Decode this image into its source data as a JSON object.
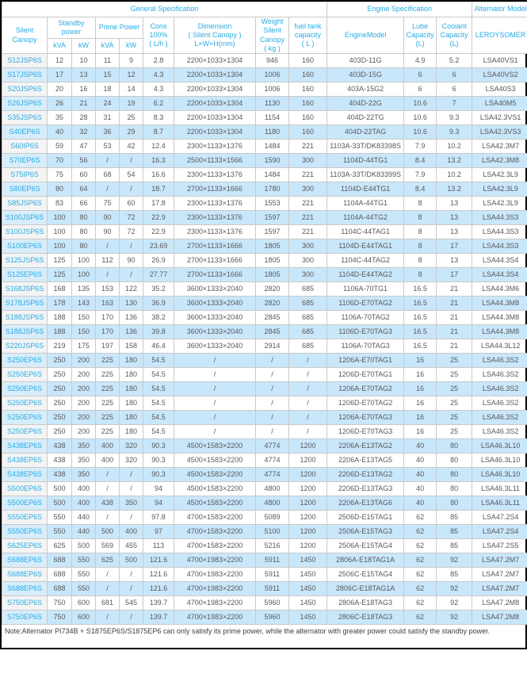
{
  "colors": {
    "accent_blue": "#29abe2",
    "alt_row_blue": "#c9e7fa",
    "model_col_gray": "#f4f4f4",
    "data_text": "#58595b"
  },
  "table": {
    "sections": {
      "general": "General Specification",
      "engine": "Engine Specification",
      "alternator": "Alternator Model"
    },
    "headers": {
      "silent_canopy": "Silent Canopy",
      "standby_power": "Standby\npower",
      "prime_power": "Prime Power",
      "standby_kva": "kVA",
      "standby_kw": "kW",
      "prime_kva": "kVA",
      "prime_kw": "kW",
      "cons": "Cons\n100%\n( L/h )",
      "dimension": "Dimension\n( Silent Canopy )\nL×W×H(mm)",
      "weight": "Weight\nSilent\nCanopy\n( kg )",
      "fuel": "fuel tank\ncapacity\n( L )",
      "engine_model": "EngineModel",
      "lube": "Lube\nCapacity\n(L)",
      "coolant": "Coolant\nCapacity\n(L)",
      "leroysomer": "LEROYSOMER"
    },
    "rows": [
      [
        "S12JSP6S",
        "12",
        "10",
        "11",
        "9",
        "2.8",
        "2200×1033×1304",
        "946",
        "160",
        "403D-11G",
        "4.9",
        "5.2",
        "LSA40VS1"
      ],
      [
        "S17JSP6S",
        "17",
        "13",
        "15",
        "12",
        "4.3",
        "2200×1033×1304",
        "1006",
        "160",
        "403D-15G",
        "6",
        "6",
        "LSA40VS2"
      ],
      [
        "S20JSP6S",
        "20",
        "16",
        "18",
        "14",
        "4.3",
        "2200×1033×1304",
        "1006",
        "160",
        "403A-15G2",
        "6",
        "6",
        "LSA40S3"
      ],
      [
        "S26JSP6S",
        "26",
        "21",
        "24",
        "19",
        "6.2",
        "2200×1033×1304",
        "1130",
        "160",
        "404D-22G",
        "10.6",
        "7",
        "LSA40M5"
      ],
      [
        "S35JSP6S",
        "35",
        "28",
        "31",
        "25",
        "8.3",
        "2200×1033×1304",
        "1154",
        "160",
        "404D-22TG",
        "10.6",
        "9.3",
        "LSA42.3VS1"
      ],
      [
        "S40EP6S",
        "40",
        "32",
        "36",
        "29",
        "8.7",
        "2200×1033×1304",
        "1180",
        "160",
        "404D-22TAG",
        "10.6",
        "9.3",
        "LSA42.3VS3"
      ],
      [
        "S60IP6S",
        "59",
        "47",
        "53",
        "42",
        "12.4",
        "2300×1133×1376",
        "1484",
        "221",
        "1103A-33T/DK83398S",
        "7.9",
        "10.2",
        "LSA42.3M7"
      ],
      [
        "S70EP6S",
        "70",
        "56",
        "/",
        "/",
        "16.3",
        "2500×1133×1566",
        "1590",
        "300",
        "1104D-44TG1",
        "8.4",
        "13.2",
        "LSA42.3M8"
      ],
      [
        "S75IP6S",
        "75",
        "60",
        "68",
        "54",
        "16.6",
        "2300×1133×1376",
        "1484",
        "221",
        "1103A-33T/DK83399S",
        "7.9",
        "10.2",
        "LSA42.3L9"
      ],
      [
        "S80EP6S",
        "80",
        "64",
        "/",
        "/",
        "18.7",
        "2700×1133×1666",
        "1780",
        "300",
        "1104D-E44TG1",
        "8.4",
        "13.2",
        "LSA42.3L9"
      ],
      [
        "S85JSP6S",
        "83",
        "66",
        "75",
        "60",
        "17.8",
        "2300×1133×1376",
        "1553",
        "221",
        "1104A-44TG1",
        "8",
        "13",
        "LSA42.3L9"
      ],
      [
        "S100JSP6S",
        "100",
        "80",
        "90",
        "72",
        "22.9",
        "2300×1133×1376",
        "1597",
        "221",
        "1104A-44TG2",
        "8",
        "13",
        "LSA44.3S3"
      ],
      [
        "S100JSP6S",
        "100",
        "80",
        "90",
        "72",
        "22.9",
        "2300×1133×1376",
        "1597",
        "221",
        "1104C-44TAG1",
        "8",
        "13",
        "LSA44.3S3"
      ],
      [
        "S100EP6S",
        "100",
        "80",
        "/",
        "/",
        "23.69",
        "2700×1133×1666",
        "1805",
        "300",
        "1104D-E44TAG1",
        "8",
        "17",
        "LSA44.3S3"
      ],
      [
        "S125JSP6S",
        "125",
        "100",
        "112",
        "90",
        "26.9",
        "2700×1133×1666",
        "1805",
        "300",
        "1104C-44TAG2",
        "8",
        "13",
        "LSA44.3S4"
      ],
      [
        "S125EP6S",
        "125",
        "100",
        "/",
        "/",
        "27.77",
        "2700×1133×1666",
        "1805",
        "300",
        "1104D-E44TAG2",
        "8",
        "17",
        "LSA44.3S4"
      ],
      [
        "S168JSP6S",
        "168",
        "135",
        "153",
        "122",
        "35.2",
        "3600×1333×2040",
        "2820",
        "685",
        "1106A-70TG1",
        "16.5",
        "21",
        "LSA44.3M6"
      ],
      [
        "S178JSP6S",
        "178",
        "143",
        "163",
        "130",
        "36.9",
        "3600×1333×2040",
        "2820",
        "685",
        "1106D-E70TAG2",
        "16.5",
        "21",
        "LSA44.3M8"
      ],
      [
        "S188JSP6S",
        "188",
        "150",
        "170",
        "136",
        "38.2",
        "3600×1333×2040",
        "2845",
        "685",
        "1106A-70TAG2",
        "16.5",
        "21",
        "LSA44.3M8"
      ],
      [
        "S188JSP6S",
        "188",
        "150",
        "170",
        "136",
        "39.8",
        "3600×1333×2040",
        "2845",
        "685",
        "1106D-E70TAG3",
        "16.5",
        "21",
        "LSA44.3M8"
      ],
      [
        "S220JSP6S",
        "219",
        "175",
        "197",
        "158",
        "46.4",
        "3600×1333×2040",
        "2914",
        "685",
        "1106A-70TAG3",
        "16.5",
        "21",
        "LSA44.3L12"
      ],
      [
        "S250EP6S",
        "250",
        "200",
        "225",
        "180",
        "54.5",
        "/",
        "/",
        "/",
        "1206A-E70TAG1",
        "16",
        "25",
        "LSA46.3S2"
      ],
      [
        "S250EP6S",
        "250",
        "200",
        "225",
        "180",
        "54.5",
        "/",
        "/",
        "/",
        "1206D-E70TAG1",
        "16",
        "25",
        "LSA46.3S2"
      ],
      [
        "S250EP6S",
        "250",
        "200",
        "225",
        "180",
        "54.5",
        "/",
        "/",
        "/",
        "1206A-E70TAG2",
        "16",
        "25",
        "LSA46.3S2"
      ],
      [
        "S250EP6S",
        "250",
        "200",
        "225",
        "180",
        "54.5",
        "/",
        "/",
        "/",
        "1206D-E70TAG2",
        "16",
        "25",
        "LSA46.3S2"
      ],
      [
        "S250EP6S",
        "250",
        "200",
        "225",
        "180",
        "54.5",
        "/",
        "/",
        "/",
        "1206A-E70TAG3",
        "16",
        "25",
        "LSA46.3S2"
      ],
      [
        "S250EP6S",
        "250",
        "200",
        "225",
        "180",
        "54.5",
        "/",
        "/",
        "/",
        "1206D-E70TAG3",
        "16",
        "25",
        "LSA46.3S2"
      ],
      [
        "S438EP6S",
        "438",
        "350",
        "400",
        "320",
        "90.3",
        "4500×1583×2200",
        "4774",
        "1200",
        "2206A-E13TAG2",
        "40",
        "80",
        "LSA46.3L10"
      ],
      [
        "S438EP6S",
        "438",
        "350",
        "400",
        "320",
        "90.3",
        "4500×1583×2200",
        "4774",
        "1200",
        "2206A-E13TAG5",
        "40",
        "80",
        "LSA46.3L10"
      ],
      [
        "S438EP6S",
        "438",
        "350",
        "/",
        "/",
        "90.3",
        "4500×1583×2200",
        "4774",
        "1200",
        "2206D-E13TAG2",
        "40",
        "80",
        "LSA46.3L10"
      ],
      [
        "S500EP6S",
        "500",
        "400",
        "/",
        "/",
        "94",
        "4500×1583×2200",
        "4800",
        "1200",
        "2206D-E13TAG3",
        "40",
        "80",
        "LSA46.3L11"
      ],
      [
        "S500EP6S",
        "500",
        "400",
        "438",
        "350",
        "94",
        "4500×1583×2200",
        "4800",
        "1200",
        "2206A-E13TAG6",
        "40",
        "80",
        "LSA46.3L11"
      ],
      [
        "S550EP6S",
        "550",
        "440",
        "/",
        "/",
        "97.8",
        "4700×1583×2200",
        "5089",
        "1200",
        "2506D-E15TAG1",
        "62",
        "85",
        "LSA47.2S4"
      ],
      [
        "S550EP6S",
        "550",
        "440",
        "500",
        "400",
        "97",
        "4700×1583×2200",
        "5100",
        "1200",
        "2506A-E15TAG3",
        "62",
        "85",
        "LSA47.2S4"
      ],
      [
        "S625EP6S",
        "625",
        "500",
        "569",
        "455",
        "113",
        "4700×1583×2200",
        "5216",
        "1200",
        "2506A-E15TAG4",
        "62",
        "85",
        "LSA47.2S5"
      ],
      [
        "S688EP6S",
        "688",
        "550",
        "625",
        "500",
        "121.6",
        "4700×1983×2200",
        "5911",
        "1450",
        "2806A-E18TAG1A",
        "62",
        "92",
        "LSA47.2M7"
      ],
      [
        "S688EP6S",
        "688",
        "550",
        "/",
        "/",
        "121.6",
        "4700×1983×2200",
        "5911",
        "1450",
        "2506C-E15TAG4",
        "62",
        "85",
        "LSA47.2M7"
      ],
      [
        "S688EP6S",
        "688",
        "550",
        "/",
        "/",
        "121.6",
        "4700×1983×2200",
        "5911",
        "1450",
        "2806C-E18TAG1A",
        "62",
        "92",
        "LSA47.2M7"
      ],
      [
        "S750EP6S",
        "750",
        "600",
        "681",
        "545",
        "139.7",
        "4700×1983×2200",
        "5960",
        "1450",
        "2806A-E18TAG3",
        "62",
        "92",
        "LSA47.2M8"
      ],
      [
        "S750EP6S",
        "750",
        "600",
        "/",
        "/",
        "139.7",
        "4700×1983×2200",
        "5960",
        "1450",
        "2806C-E18TAG3",
        "62",
        "92",
        "LSA47.2M8"
      ]
    ]
  },
  "note": "Note:Alternator PI734B + S1875EP6S/S1875EP6 can only satisfy its prime power, while the alternator with greater power could satisfy the standby power."
}
